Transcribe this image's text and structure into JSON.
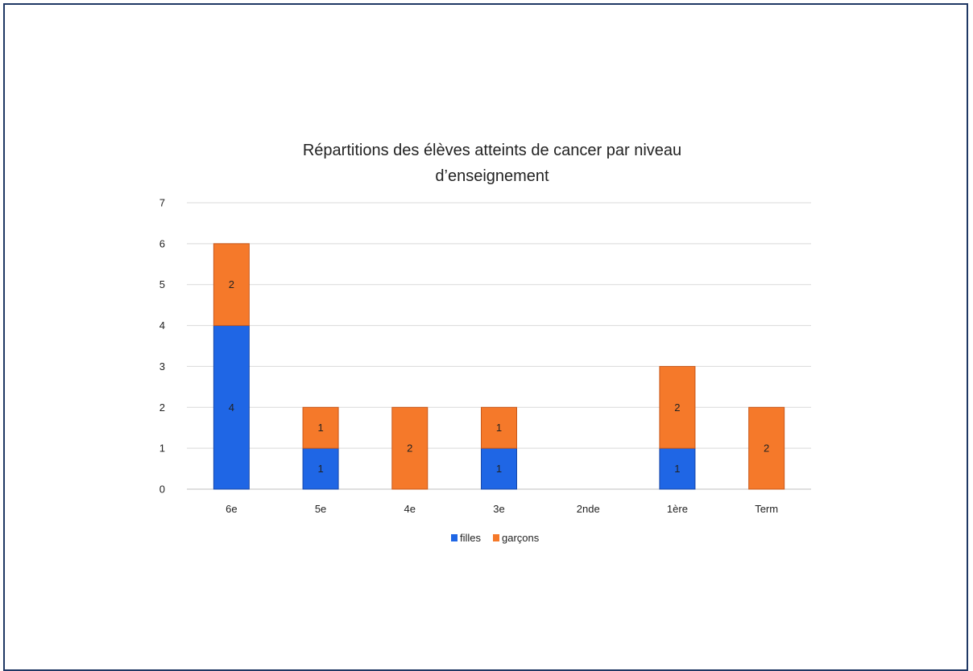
{
  "chart_data": {
    "type": "bar",
    "stacked": true,
    "title_lines": [
      "Répartitions des élèves atteints de cancer par niveau",
      "d’enseignement"
    ],
    "categories": [
      "6e",
      "5e",
      "4e",
      "3e",
      "2nde",
      "1ère",
      "Term"
    ],
    "series": [
      {
        "name": "filles",
        "values": [
          4,
          1,
          0,
          1,
          0,
          1,
          0
        ],
        "color": "#1f66e5"
      },
      {
        "name": "garçons",
        "values": [
          2,
          1,
          2,
          1,
          0,
          2,
          2
        ],
        "color": "#f5792a"
      }
    ],
    "xlabel": "",
    "ylabel": "",
    "ylim": [
      0,
      7
    ],
    "yticks": [
      0,
      1,
      2,
      3,
      4,
      5,
      6,
      7
    ],
    "grid": true,
    "legend_position": "bottom",
    "data_labels": true
  }
}
